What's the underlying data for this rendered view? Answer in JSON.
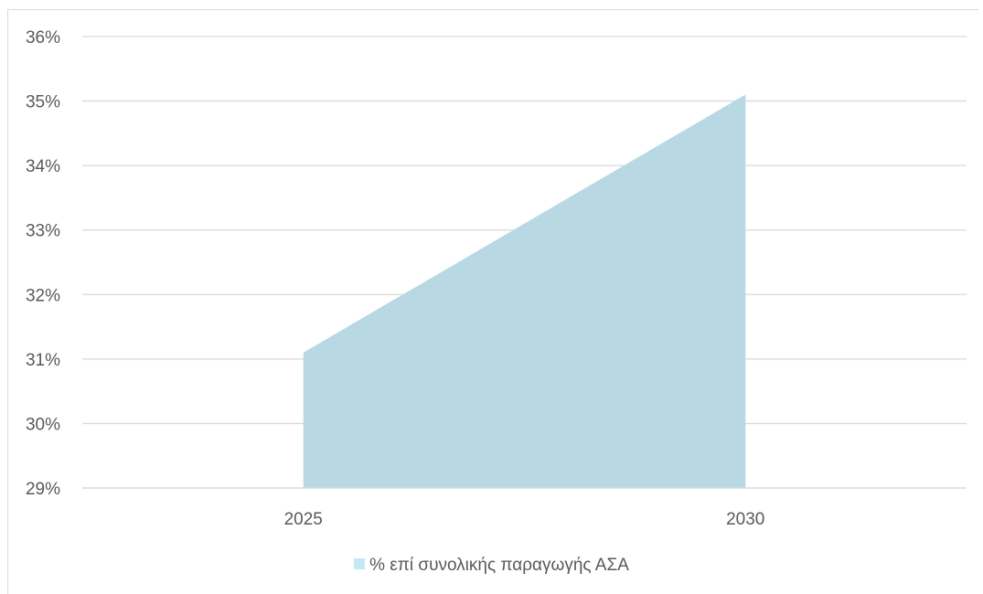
{
  "chart_data": {
    "type": "area",
    "categories": [
      "2025",
      "2030"
    ],
    "series": [
      {
        "name": "% επί συνολικής παραγωγής ΑΣΑ",
        "values": [
          31.1,
          35.1
        ]
      }
    ],
    "y_tick_labels": [
      "29%",
      "30%",
      "31%",
      "32%",
      "33%",
      "34%",
      "35%",
      "36%"
    ],
    "ylim": [
      29,
      36
    ],
    "grid": true,
    "legend_position": "bottom",
    "colors": {
      "area_fill": "#b8d8e4",
      "legend_swatch": "#c5e8f5",
      "gridline": "#d9d9d9",
      "text": "#595959"
    }
  }
}
